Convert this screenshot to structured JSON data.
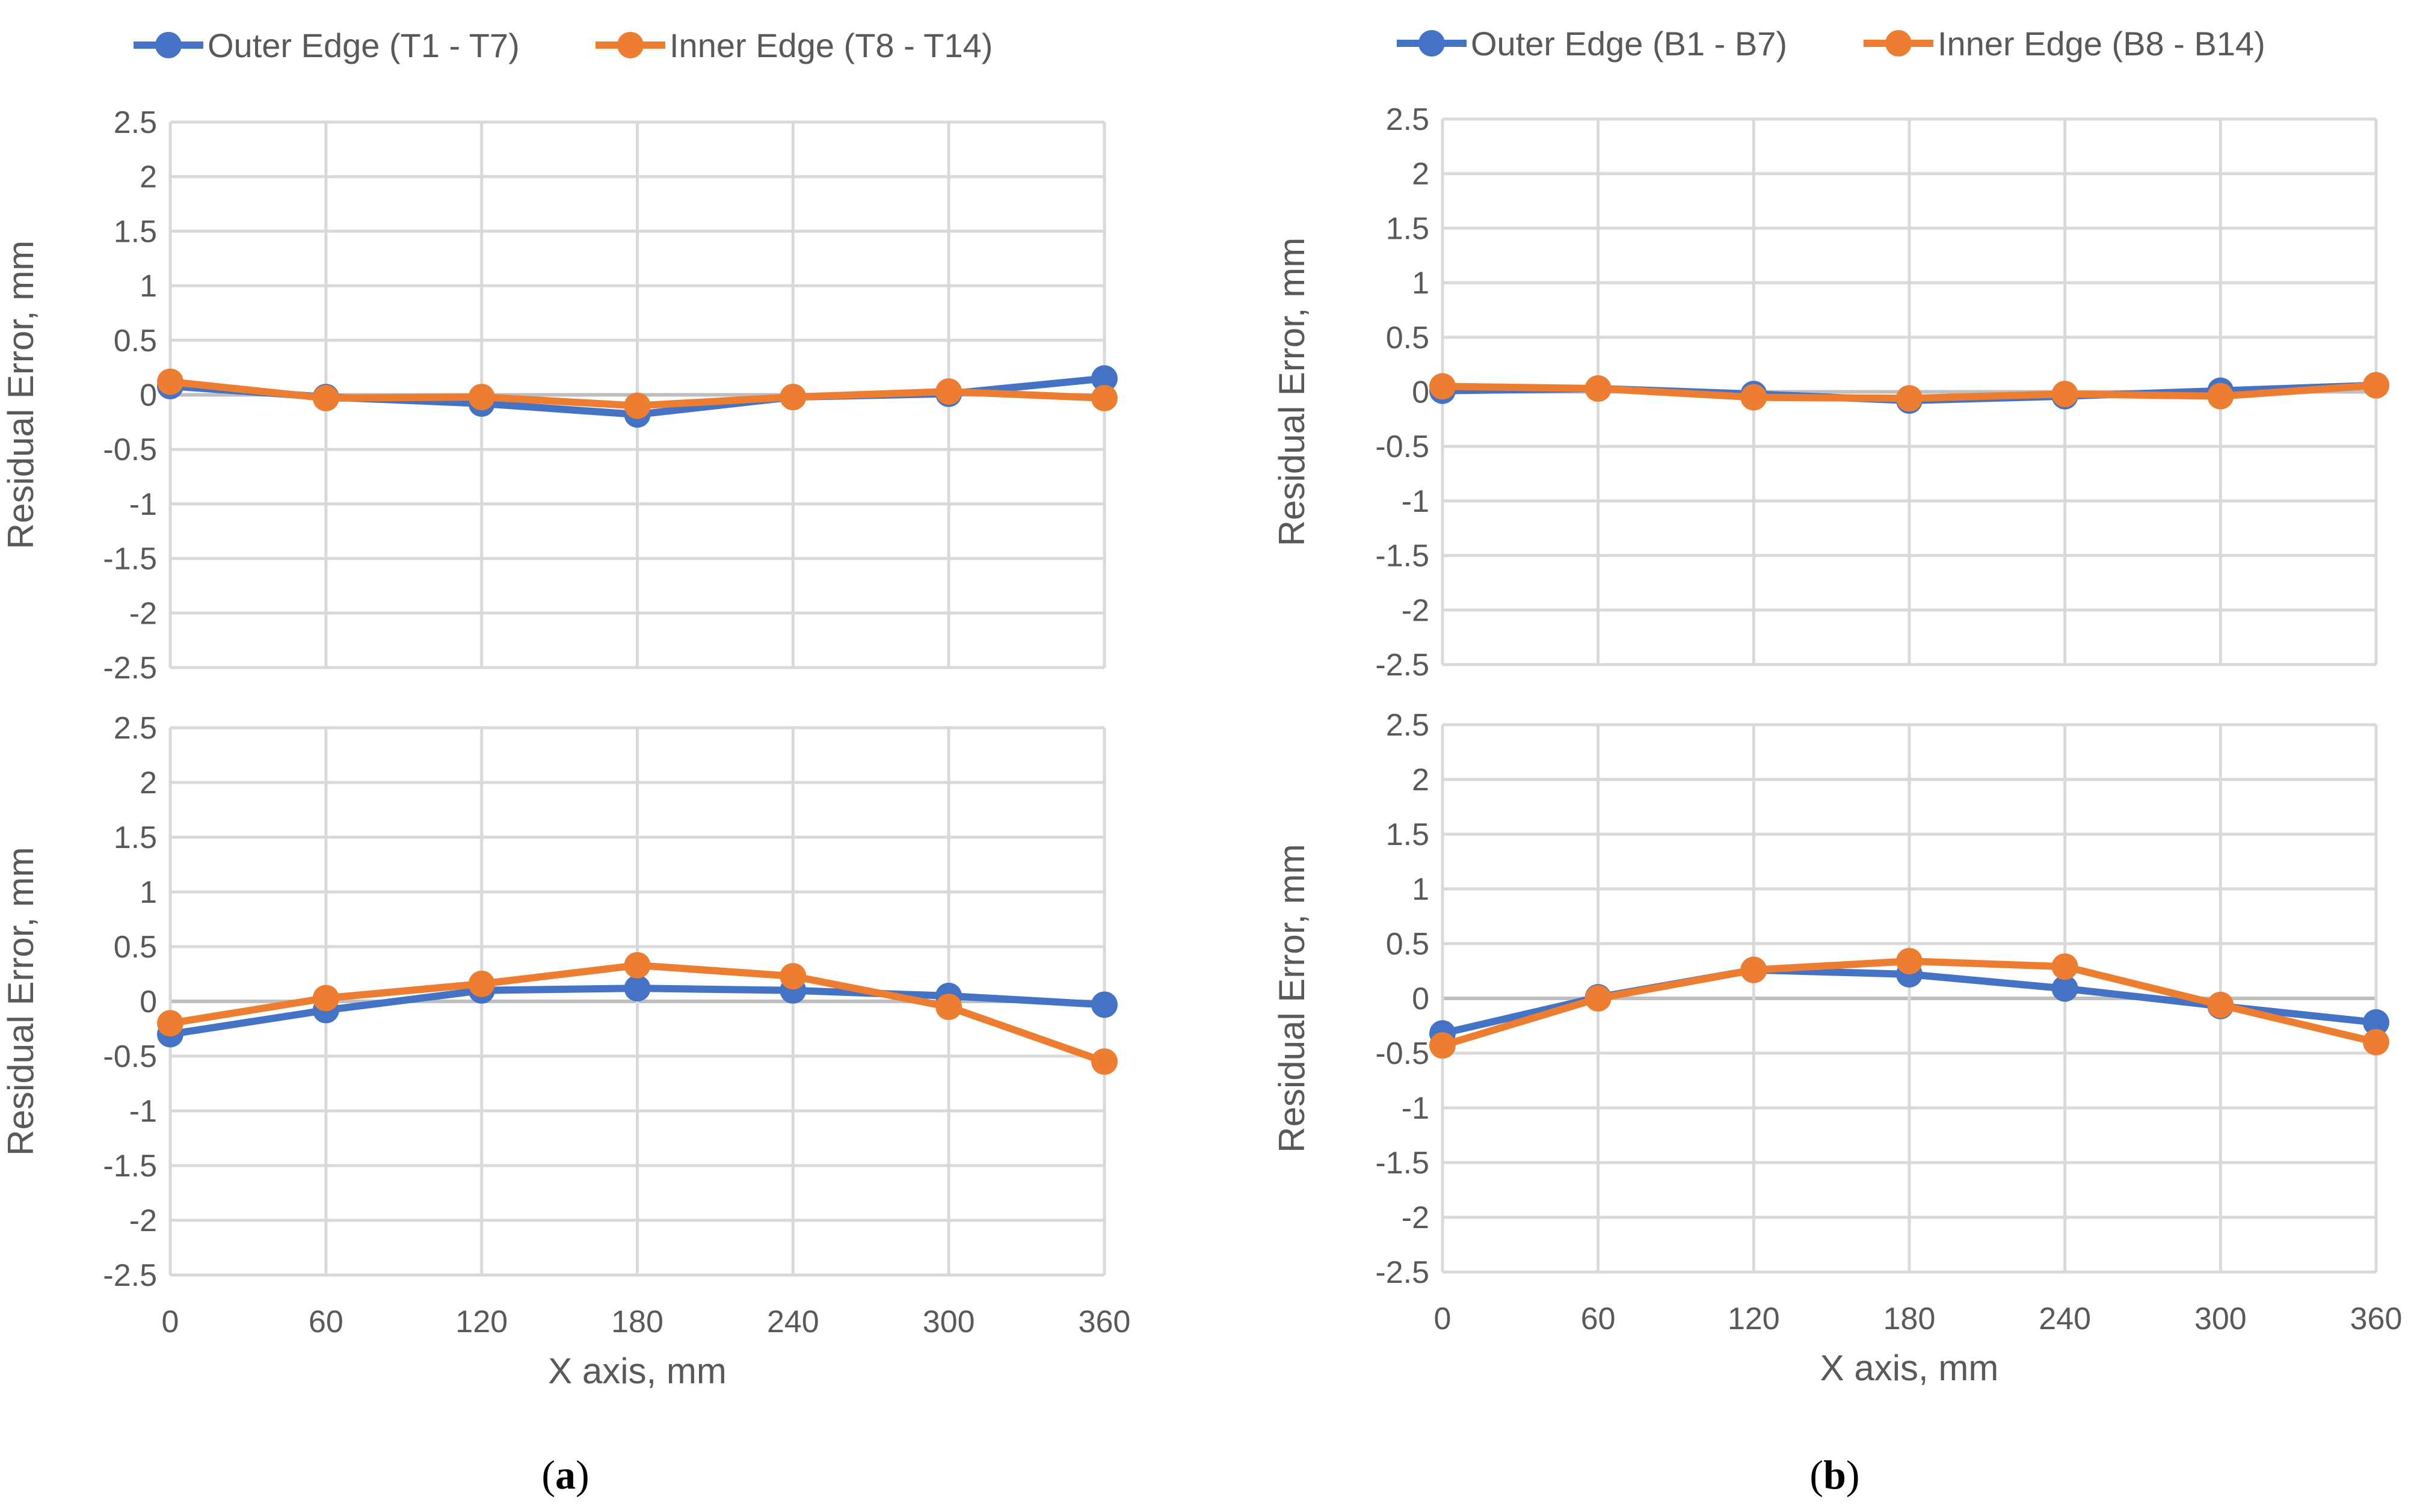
{
  "chart_data": [
    {
      "type": "line",
      "panel": "a-top",
      "xlabel": "",
      "ylabel": "Residual Error, mm",
      "x": [
        0,
        60,
        120,
        180,
        240,
        300,
        360
      ],
      "ylim": [
        -2.5,
        2.5
      ],
      "yticks": [
        2.5,
        2,
        1.5,
        1,
        0.5,
        0,
        -0.5,
        -1,
        -1.5,
        -2,
        -2.5
      ],
      "grid": true,
      "series": [
        {
          "name": "Outer Edge (T1 - T7)",
          "color": "#4472C4",
          "values": [
            0.08,
            -0.02,
            -0.08,
            -0.18,
            -0.02,
            0.01,
            0.15
          ]
        },
        {
          "name": "Inner Edge (T8 - T14)",
          "color": "#ED7D31",
          "values": [
            0.12,
            -0.03,
            -0.02,
            -0.1,
            -0.02,
            0.03,
            -0.03
          ]
        }
      ]
    },
    {
      "type": "line",
      "panel": "a-bottom",
      "xlabel": "X axis, mm",
      "ylabel": "Residual Error, mm",
      "x": [
        0,
        60,
        120,
        180,
        240,
        300,
        360
      ],
      "xticks": [
        "0",
        "60",
        "120",
        "180",
        "240",
        "300",
        "360"
      ],
      "ylim": [
        -2.5,
        2.5
      ],
      "yticks": [
        2.5,
        2,
        1.5,
        1,
        0.5,
        0,
        -0.5,
        -1,
        -1.5,
        -2,
        -2.5
      ],
      "grid": true,
      "series": [
        {
          "name": "Outer Edge (T1 - T7)",
          "color": "#4472C4",
          "values": [
            -0.3,
            -0.08,
            0.1,
            0.12,
            0.1,
            0.05,
            -0.03
          ]
        },
        {
          "name": "Inner Edge (T8 - T14)",
          "color": "#ED7D31",
          "values": [
            -0.2,
            0.03,
            0.16,
            0.33,
            0.23,
            -0.05,
            -0.55
          ]
        }
      ]
    },
    {
      "type": "line",
      "panel": "b-top",
      "xlabel": "",
      "ylabel": "Residual Error, mm",
      "x": [
        0,
        60,
        120,
        180,
        240,
        300,
        360
      ],
      "ylim": [
        -2.5,
        2.5
      ],
      "yticks": [
        2.5,
        2,
        1.5,
        1,
        0.5,
        0,
        -0.5,
        -1,
        -1.5,
        -2,
        -2.5
      ],
      "grid": true,
      "series": [
        {
          "name": "Outer Edge (B1 - B7)",
          "color": "#4472C4",
          "values": [
            0.01,
            0.03,
            -0.02,
            -0.08,
            -0.04,
            0.01,
            0.06
          ]
        },
        {
          "name": "Inner Edge (B8 - B14)",
          "color": "#ED7D31",
          "values": [
            0.05,
            0.03,
            -0.05,
            -0.06,
            -0.02,
            -0.04,
            0.06
          ]
        }
      ]
    },
    {
      "type": "line",
      "panel": "b-bottom",
      "xlabel": "X axis, mm",
      "ylabel": "Residual Error, mm",
      "x": [
        0,
        60,
        120,
        180,
        240,
        300,
        360
      ],
      "xticks": [
        "0",
        "60",
        "120",
        "180",
        "240",
        "300",
        "360"
      ],
      "ylim": [
        -2.5,
        2.5
      ],
      "yticks": [
        2.5,
        2,
        1.5,
        1,
        0.5,
        0,
        -0.5,
        -1,
        -1.5,
        -2,
        -2.5
      ],
      "grid": true,
      "series": [
        {
          "name": "Outer Edge (B1 - B7)",
          "color": "#4472C4",
          "values": [
            -0.32,
            0.01,
            0.26,
            0.22,
            0.09,
            -0.07,
            -0.22
          ]
        },
        {
          "name": "Inner Edge (B8 - B14)",
          "color": "#ED7D31",
          "values": [
            -0.43,
            0.0,
            0.26,
            0.34,
            0.29,
            -0.06,
            -0.4
          ]
        }
      ]
    }
  ],
  "legends": {
    "a": [
      "Outer Edge (T1 - T7)",
      "Inner Edge (T8 - T14)"
    ],
    "b": [
      "Outer Edge (B1 - B7)",
      "Inner Edge (B8 - B14)"
    ]
  },
  "captions": {
    "a": {
      "open": "(",
      "letter": "a",
      "close": ")"
    },
    "b": {
      "open": "(",
      "letter": "b",
      "close": ")"
    }
  },
  "colors": {
    "outer": "#4472C4",
    "inner": "#ED7D31",
    "grid": "#D9D9D9",
    "zero_line": "#BFBFBF",
    "text": "#595959"
  }
}
